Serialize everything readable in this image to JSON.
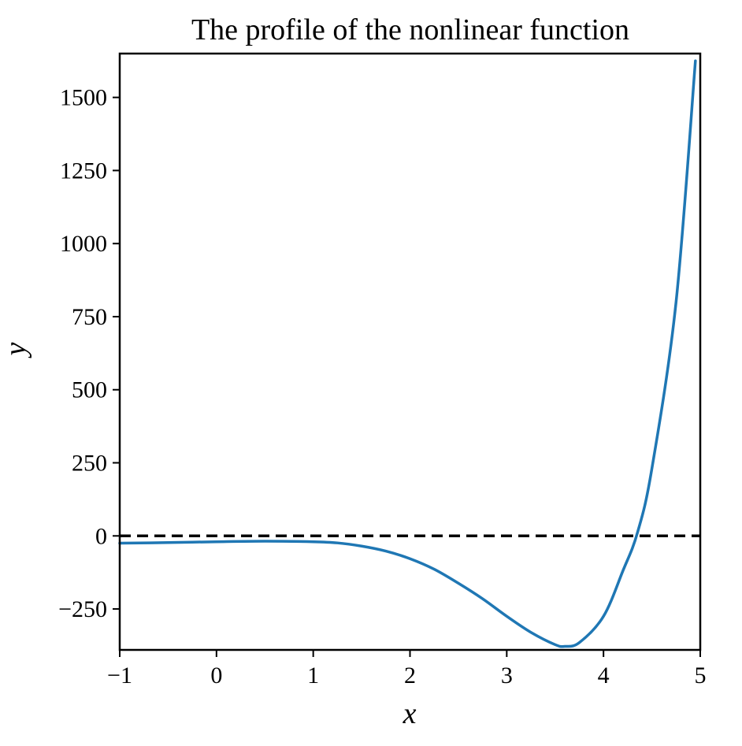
{
  "chart_data": {
    "type": "line",
    "title": "The profile of the nonlinear function",
    "xlabel": "x",
    "ylabel": "y",
    "xlim": [
      -1,
      5
    ],
    "ylim": [
      -390,
      1650
    ],
    "x_ticks": [
      -1,
      0,
      1,
      2,
      3,
      4,
      5
    ],
    "x_tick_labels": [
      "−1",
      "0",
      "1",
      "2",
      "3",
      "4",
      "5"
    ],
    "y_ticks": [
      -250,
      0,
      250,
      500,
      750,
      1000,
      1250,
      1500
    ],
    "y_tick_labels": [
      "−250",
      "0",
      "250",
      "500",
      "750",
      "1000",
      "1250",
      "1500"
    ],
    "grid": false,
    "series": [
      {
        "color": "#1f77b4",
        "x": [
          -1.0,
          -0.5,
          0.0,
          0.5,
          1.0,
          1.25,
          1.5,
          1.75,
          2.0,
          2.25,
          2.5,
          2.75,
          3.0,
          3.25,
          3.5,
          3.6,
          3.75,
          4.0,
          4.2,
          4.35,
          4.5,
          4.75,
          4.95
        ],
        "y": [
          -25,
          -23,
          -20,
          -18,
          -20,
          -24,
          -35,
          -52,
          -78,
          -114,
          -162,
          -215,
          -275,
          -330,
          -372,
          -378,
          -365,
          -275,
          -120,
          10,
          230,
          800,
          1625
        ]
      }
    ],
    "reference_line": {
      "y": 0,
      "style": "dashed",
      "color": "#000000"
    }
  }
}
